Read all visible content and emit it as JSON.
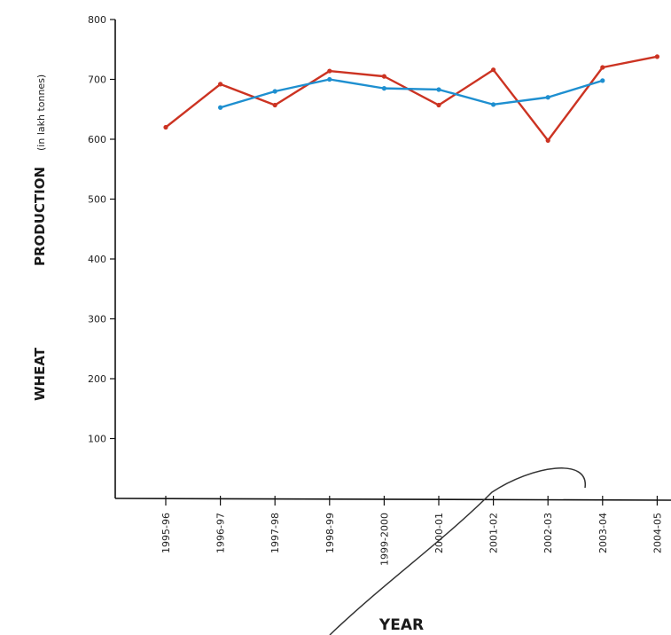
{
  "chart_data": {
    "type": "line",
    "title": "",
    "xlabel": "YEAR",
    "ylabel_words": [
      "WHEAT",
      "PRODUCTION"
    ],
    "ylabel_unit": "(in lakh tonnes)",
    "ylim": [
      0,
      800
    ],
    "yticks": [
      100,
      200,
      300,
      400,
      500,
      600,
      700,
      800
    ],
    "grid": false,
    "categories": [
      "1995-96",
      "1996-97",
      "1997-98",
      "1998-99",
      "1999-2000",
      "2000-01",
      "2001-02",
      "2002-03",
      "2003-04",
      "2004-05"
    ],
    "series": [
      {
        "color": "#cc3322",
        "values": [
          620,
          692,
          657,
          714,
          705,
          657,
          716,
          598,
          720,
          738
        ]
      },
      {
        "color": "#1e8fd0",
        "values": [
          null,
          653,
          680,
          700,
          685,
          683,
          658,
          670,
          698,
          null
        ]
      }
    ]
  }
}
